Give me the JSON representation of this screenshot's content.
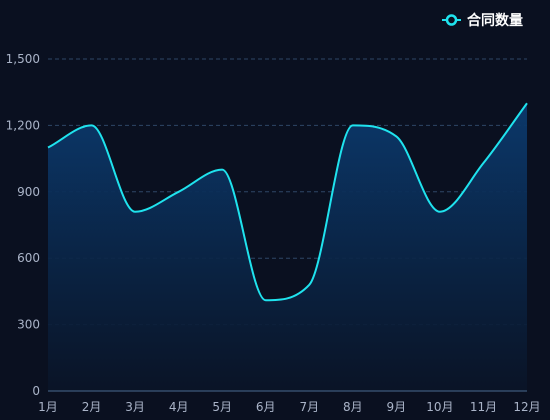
{
  "chart_data": {
    "type": "area",
    "categories": [
      "1月",
      "2月",
      "3月",
      "4月",
      "5月",
      "6月",
      "7月",
      "8月",
      "9月",
      "10月",
      "11月",
      "12月"
    ],
    "series": [
      {
        "name": "合同数量",
        "values": [
          1100,
          1200,
          810,
          900,
          1000,
          410,
          480,
          1200,
          1150,
          810,
          1030,
          1300
        ]
      }
    ],
    "y_ticks": [
      "0",
      "300",
      "600",
      "900",
      "1,200",
      "1,500"
    ],
    "ylim": [
      0,
      1500
    ],
    "grid": true,
    "legend_position": "top-right",
    "colors": {
      "line": "#1fe3ee",
      "area_top": "#0b3a6e",
      "area_bottom": "#0a1427",
      "grid": "#2e4666",
      "axis": "#4a6a8f",
      "background": "#0a1020"
    }
  }
}
